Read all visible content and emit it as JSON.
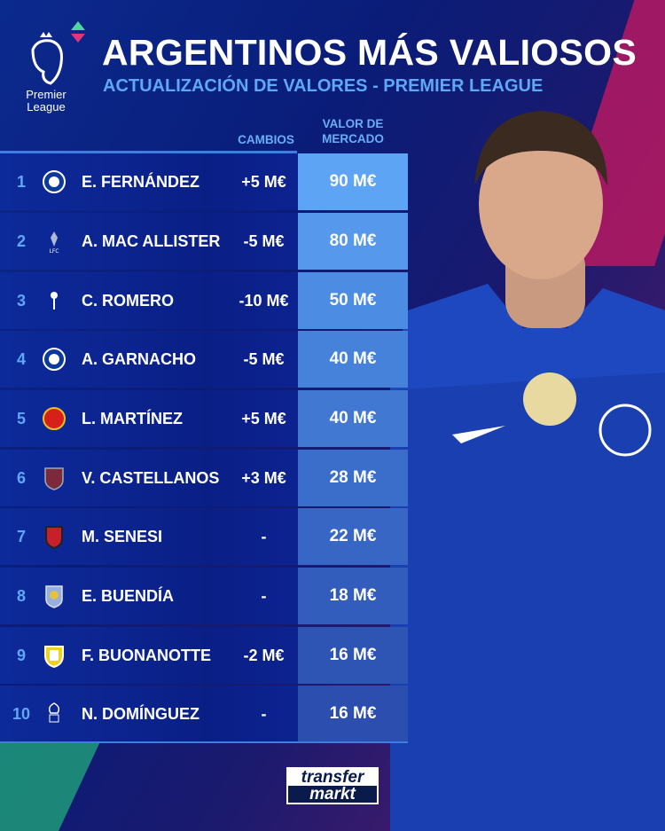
{
  "header": {
    "title": "ARGENTINOS MÁS VALIOSOS",
    "subtitle": "ACTUALIZACIÓN DE VALORES - PREMIER LEAGUE",
    "logo_text": [
      "Premier",
      "League"
    ]
  },
  "columns": {
    "changes": "CAMBIOS",
    "value_line1": "VALOR DE",
    "value_line2": "MERCADO"
  },
  "rows": [
    {
      "rank": "1",
      "club_icon": "chelsea-crest",
      "player": "E. FERNÁNDEZ",
      "change": "+5 M€",
      "value": "90 M€",
      "color": "#5ea4f5"
    },
    {
      "rank": "2",
      "club_icon": "liverpool-crest",
      "player": "A. MAC ALLISTER",
      "change": "-5 M€",
      "value": "80 M€",
      "color": "#5598ec"
    },
    {
      "rank": "3",
      "club_icon": "tottenham-crest",
      "player": "C. ROMERO",
      "change": "-10 M€",
      "value": "50 M€",
      "color": "#4c8ce2"
    },
    {
      "rank": "4",
      "club_icon": "chelsea-crest",
      "player": "A. GARNACHO",
      "change": "-5 M€",
      "value": "40 M€",
      "color": "#4682da"
    },
    {
      "rank": "5",
      "club_icon": "man-united-crest",
      "player": "L. MARTÍNEZ",
      "change": "+5 M€",
      "value": "40 M€",
      "color": "#4078d2"
    },
    {
      "rank": "6",
      "club_icon": "west-ham-crest",
      "player": "V. CASTELLANOS",
      "change": "+3 M€",
      "value": "28 M€",
      "color": "#3b6ecb"
    },
    {
      "rank": "7",
      "club_icon": "bournemouth-crest",
      "player": "M. SENESI",
      "change": "-",
      "value": "22 M€",
      "color": "#3766c4"
    },
    {
      "rank": "8",
      "club_icon": "aston-villa-crest",
      "player": "E. BUENDÍA",
      "change": "-",
      "value": "18 M€",
      "color": "#335dbc"
    },
    {
      "rank": "9",
      "club_icon": "leeds-crest",
      "player": "F. BUONANOTTE",
      "change": "-2 M€",
      "value": "16 M€",
      "color": "#2f55b4"
    },
    {
      "rank": "10",
      "club_icon": "nottingham-forest-crest",
      "player": "N. DOMÍNGUEZ",
      "change": "-",
      "value": "16 M€",
      "color": "#2c4eae"
    }
  ],
  "footer": {
    "brand_line1": "transfer",
    "brand_line2": "markt"
  }
}
